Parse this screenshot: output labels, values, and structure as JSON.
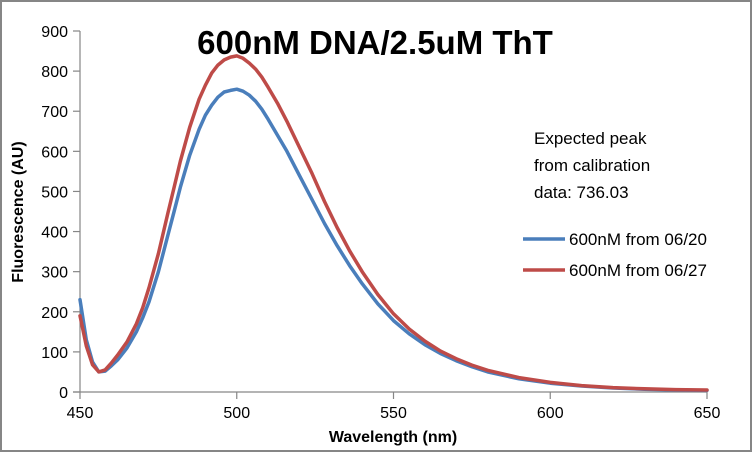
{
  "chart_data": {
    "type": "line",
    "title": "600nM DNA/2.5uM ThT",
    "xlabel": "Wavelength (nm)",
    "ylabel": "Fluorescence (AU)",
    "xlim": [
      450,
      650
    ],
    "ylim": [
      0,
      900
    ],
    "xticks": [
      450,
      500,
      550,
      600,
      650
    ],
    "yticks": [
      0,
      100,
      200,
      300,
      400,
      500,
      600,
      700,
      800,
      900
    ],
    "grid": false,
    "legend_position": "right",
    "annotation": [
      "Expected peak",
      "from calibration",
      "data: 736.03"
    ],
    "x": [
      450,
      452,
      454,
      456,
      458,
      460,
      462,
      465,
      468,
      470,
      472,
      475,
      478,
      480,
      482,
      485,
      488,
      490,
      492,
      494,
      496,
      498,
      500,
      502,
      504,
      506,
      508,
      510,
      513,
      516,
      520,
      524,
      528,
      532,
      536,
      540,
      545,
      550,
      555,
      560,
      565,
      570,
      575,
      580,
      590,
      600,
      610,
      620,
      630,
      640,
      650
    ],
    "series": [
      {
        "name": "600nM from 06/20",
        "color": "#4a7ebb",
        "values": [
          230,
          130,
          75,
          50,
          52,
          65,
          80,
          110,
          150,
          185,
          225,
          300,
          390,
          450,
          510,
          590,
          655,
          690,
          715,
          735,
          748,
          752,
          755,
          750,
          740,
          725,
          705,
          680,
          640,
          600,
          540,
          480,
          420,
          365,
          315,
          270,
          220,
          178,
          145,
          118,
          96,
          78,
          63,
          50,
          33,
          22,
          15,
          10,
          7,
          5,
          4
        ]
      },
      {
        "name": "600nM from 06/27",
        "color": "#be4b48",
        "values": [
          190,
          115,
          68,
          50,
          55,
          72,
          92,
          125,
          170,
          210,
          260,
          345,
          445,
          510,
          575,
          660,
          730,
          765,
          795,
          815,
          828,
          835,
          838,
          832,
          820,
          805,
          785,
          760,
          720,
          675,
          610,
          545,
          475,
          410,
          352,
          300,
          243,
          195,
          157,
          127,
          102,
          83,
          67,
          54,
          36,
          24,
          16,
          11,
          8,
          6,
          5
        ]
      }
    ]
  }
}
